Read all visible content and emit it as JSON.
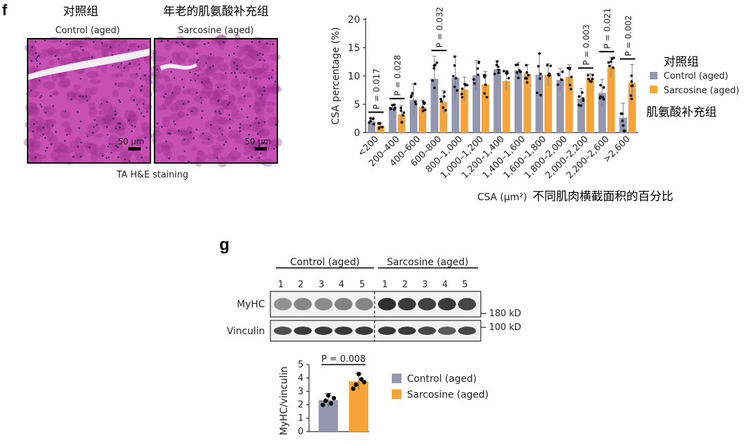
{
  "colors": {
    "control": "#9497b0",
    "sarcosine": "#f4a43a",
    "tissue": "#c84fb3",
    "tissue_dark": "#9a2f8f",
    "gap": "#f3eef3"
  },
  "panel_f": {
    "label": "f",
    "img_left": {
      "cn": "对照组",
      "title": "Control (aged)",
      "scale": "50 μm"
    },
    "img_right": {
      "cn": "年老的肌氨酸补充组",
      "title": "Sarcosine (aged)",
      "scale": "50 μm"
    },
    "caption": "TA H&E staining",
    "legend": {
      "cn_control": "对照组",
      "cn_sarcosine": "肌氨酸补充组"
    },
    "xlabel_cn": "不同肌肉横截面积的百分比"
  },
  "panel_g": {
    "label": "g",
    "ctrl_header": "Control (aged)",
    "sarc_header": "Sarcosine (aged)",
    "lanes": [
      "1",
      "2",
      "3",
      "4",
      "5",
      "1",
      "2",
      "3",
      "4",
      "5"
    ],
    "blots": [
      {
        "name": "MyHC",
        "kd": "180 kD"
      },
      {
        "name": "Vinculin",
        "kd": "100 kD"
      }
    ],
    "p_text": "P = 0.008"
  },
  "chart_data": [
    {
      "type": "bar",
      "title": "",
      "ylabel": "CSA percentage (%)",
      "xlabel": "CSA (μm²)",
      "ylim": [
        0,
        20
      ],
      "yticks": [
        "0",
        "5",
        "10",
        "15",
        "20"
      ],
      "categories": [
        "<200",
        "200–400",
        "400–600",
        "600–800",
        "800–1,000",
        "1,000–1,200",
        "1,200–1,400",
        "1,400–1,600",
        "1,600–1,800",
        "1,800–2,000",
        "2,000–2,200",
        "2,200–2,600",
        ">2,600"
      ],
      "series": [
        {
          "name": "Control (aged)",
          "values": [
            2.0,
            4.5,
            5.8,
            9.5,
            9.7,
            10.1,
            11.2,
            11.0,
            10.2,
            9.3,
            6.0,
            7.0,
            2.6
          ],
          "errors": [
            0.6,
            0.5,
            2.8,
            4.0,
            3.8,
            2.6,
            1.5,
            1.4,
            3.8,
            2.0,
            1.8,
            2.4,
            2.6
          ]
        },
        {
          "name": "Sarcosine (aged)",
          "values": [
            1.2,
            3.2,
            4.5,
            5.4,
            7.6,
            8.5,
            9.1,
            10.4,
            10.2,
            9.8,
            9.6,
            11.5,
            8.8
          ],
          "errors": [
            0.5,
            1.6,
            1.2,
            2.0,
            2.2,
            2.3,
            1.8,
            1.6,
            2.0,
            2.2,
            0.8,
            1.8,
            3.2
          ]
        }
      ],
      "annotations": [
        {
          "pair": 0,
          "text": "P = 0.017"
        },
        {
          "pair": 1,
          "text": "P = 0.028"
        },
        {
          "pair": 3,
          "text": "P = 0.032"
        },
        {
          "pair": 10,
          "text": "P = 0.003"
        },
        {
          "pair": 11,
          "text": "P = 0.021"
        },
        {
          "pair": 12,
          "text": "P = 0.002"
        }
      ],
      "legend": [
        "Control (aged)",
        "Sarcosine (aged)"
      ]
    },
    {
      "type": "bar",
      "title": "",
      "ylabel": "MyHC/vinculin",
      "ylim": [
        0,
        5
      ],
      "yticks": [
        "0",
        "1",
        "2",
        "3",
        "4",
        "5"
      ],
      "categories": [
        "Control (aged)",
        "Sarcosine (aged)"
      ],
      "values": [
        2.35,
        3.75
      ],
      "errors": [
        0.5,
        0.6
      ],
      "points": [
        [
          2.0,
          2.3,
          2.7,
          2.1,
          2.5
        ],
        [
          3.2,
          3.5,
          4.3,
          3.9,
          3.7
        ]
      ],
      "legend": [
        "Control (aged)",
        "Sarcosine (aged)"
      ]
    }
  ]
}
